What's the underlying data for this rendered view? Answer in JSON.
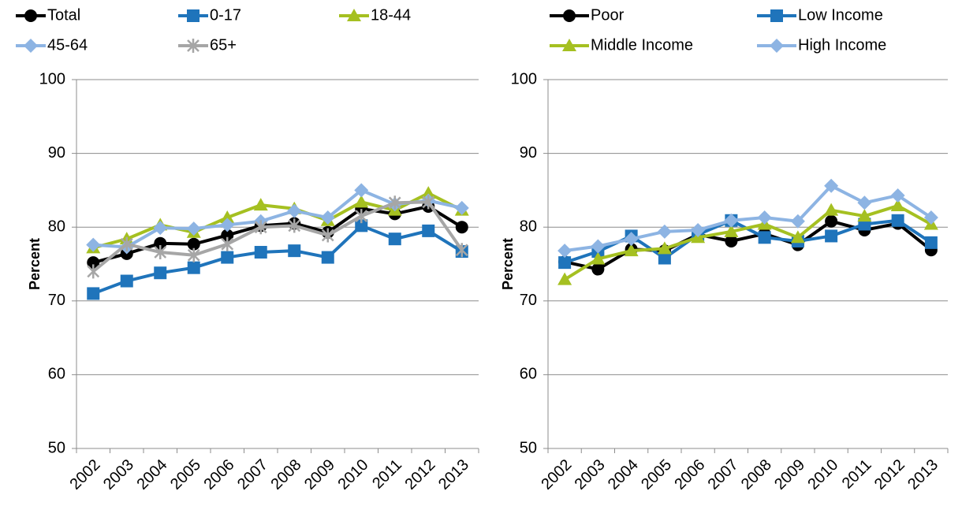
{
  "chart_data": [
    {
      "type": "line",
      "y_label": "Percent",
      "categories": [
        "2002",
        "2003",
        "2004",
        "2005",
        "2006",
        "2007",
        "2008",
        "2009",
        "2010",
        "2011",
        "2012",
        "2013"
      ],
      "ylim": [
        50,
        100
      ],
      "yticks": [
        50,
        60,
        70,
        80,
        90,
        100
      ],
      "grid": true,
      "legend": "top",
      "series": [
        {
          "name": "Total",
          "color": "#000000",
          "marker": "circle",
          "values": [
            75.2,
            76.4,
            77.8,
            77.7,
            78.9,
            80.2,
            80.5,
            79.3,
            82.5,
            81.8,
            82.8,
            80.0
          ]
        },
        {
          "name": "0-17",
          "color": "#1f74bb",
          "marker": "square",
          "values": [
            71.0,
            72.7,
            73.8,
            74.5,
            75.9,
            76.6,
            76.8,
            75.9,
            80.2,
            78.4,
            79.5,
            76.7
          ]
        },
        {
          "name": "18-44",
          "color": "#a5c021",
          "marker": "triangle",
          "values": [
            77.2,
            78.4,
            80.3,
            79.3,
            81.3,
            83.0,
            82.5,
            80.9,
            83.4,
            82.3,
            84.6,
            82.3
          ]
        },
        {
          "name": "45-64",
          "color": "#8db4e3",
          "marker": "diamond",
          "values": [
            77.6,
            77.3,
            79.9,
            79.8,
            80.3,
            80.8,
            82.2,
            81.3,
            85.0,
            83.1,
            83.6,
            82.6
          ]
        },
        {
          "name": "65+",
          "color": "#a6a6a6",
          "marker": "star",
          "values": [
            74.0,
            77.7,
            76.6,
            76.2,
            77.7,
            80.0,
            80.2,
            78.9,
            81.5,
            83.3,
            83.4,
            76.9
          ]
        }
      ]
    },
    {
      "type": "line",
      "y_label": "Percent",
      "categories": [
        "2002",
        "2003",
        "2004",
        "2005",
        "2006",
        "2007",
        "2008",
        "2009",
        "2010",
        "2011",
        "2012",
        "2013"
      ],
      "ylim": [
        50,
        100
      ],
      "yticks": [
        50,
        60,
        70,
        80,
        90,
        100
      ],
      "grid": true,
      "legend": "top",
      "series": [
        {
          "name": "Poor",
          "color": "#000000",
          "marker": "circle",
          "values": [
            75.3,
            74.3,
            77.0,
            76.8,
            79.0,
            78.1,
            79.1,
            77.6,
            80.8,
            79.6,
            80.5,
            76.9
          ]
        },
        {
          "name": "Low Income",
          "color": "#1f74bb",
          "marker": "square",
          "values": [
            75.2,
            76.7,
            78.8,
            75.8,
            79.0,
            80.9,
            78.6,
            78.1,
            78.8,
            80.4,
            80.9,
            77.9
          ]
        },
        {
          "name": "Middle Income",
          "color": "#a5c021",
          "marker": "triangle",
          "values": [
            72.9,
            75.7,
            76.8,
            77.1,
            78.6,
            79.4,
            80.4,
            78.6,
            82.3,
            81.5,
            82.9,
            80.4
          ]
        },
        {
          "name": "High Income",
          "color": "#8db4e3",
          "marker": "diamond",
          "values": [
            76.8,
            77.4,
            78.4,
            79.4,
            79.6,
            80.9,
            81.3,
            80.8,
            85.6,
            83.3,
            84.3,
            81.3
          ]
        }
      ]
    }
  ]
}
